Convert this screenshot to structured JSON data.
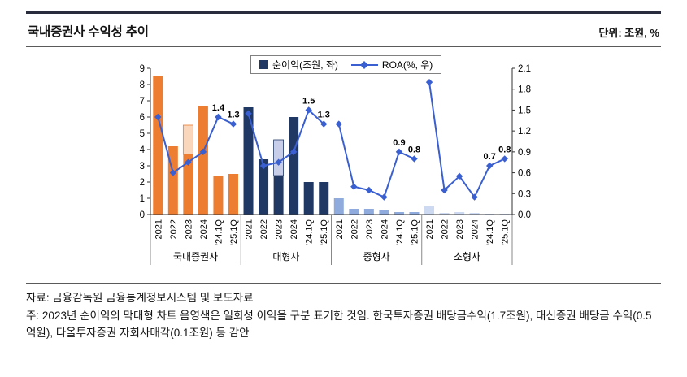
{
  "header": {
    "title": "국내증권사 수익성 추이",
    "unit": "단위: 조원, %"
  },
  "notes": {
    "source": "자료: 금융감독원 금융통계정보시스템 및 보도자료",
    "note": "주: 2023년 순이익의 막대형 차트 음영색은 일회성 이익을 구분 표기한 것임. 한국투자증권 배당금수익(1.7조원), 대신증권 배당금 수익(0.5억원), 다올투자증권 자회사매각(0.1조원) 등 감안"
  },
  "chart_data": {
    "type": "bar+line",
    "title": "국내증권사 수익성 추이",
    "legend": {
      "bar_label": "순이익(조원, 좌)",
      "line_label": "ROA(%, 우)",
      "position": "top-center"
    },
    "categories": [
      "2021",
      "2022",
      "2023",
      "2024",
      "'24.1Q",
      "'25.1Q"
    ],
    "left_axis": {
      "min": 0,
      "max": 9,
      "label_ticks": [
        0,
        1,
        2,
        3,
        4,
        5,
        6,
        7,
        8,
        9
      ],
      "meaning": "순이익(조원)"
    },
    "right_axis": {
      "min": 0,
      "max": 2.1,
      "label_ticks": [
        "0.0",
        "0.3",
        "0.6",
        "0.9",
        "1.2",
        "1.5",
        "1.8",
        "2.1"
      ],
      "meaning": "ROA(%)"
    },
    "grid": "off",
    "line_color": "#3a5fd0",
    "groups": [
      {
        "name": "국내증권사",
        "bar_color": "#ED7D31",
        "one_off_fill": "#FAD7BC",
        "net_income": [
          8.5,
          4.2,
          3.7,
          6.7,
          2.4,
          2.5
        ],
        "one_off": [
          0,
          0,
          1.8,
          0,
          0,
          0
        ],
        "roa": [
          1.4,
          0.6,
          0.75,
          0.9,
          1.4,
          1.3
        ],
        "roa_labels": [
          "",
          "",
          "",
          "",
          "1.4",
          "1.3"
        ]
      },
      {
        "name": "대형사",
        "bar_color": "#203864",
        "one_off_fill": "#C9CEE8",
        "net_income": [
          6.6,
          3.4,
          2.4,
          6.0,
          2.0,
          2.0
        ],
        "one_off": [
          0,
          0,
          2.2,
          0,
          0,
          0
        ],
        "roa": [
          1.45,
          0.7,
          0.75,
          0.9,
          1.5,
          1.3
        ],
        "roa_labels": [
          "",
          "",
          "",
          "",
          "1.5",
          "1.3"
        ]
      },
      {
        "name": "중형사",
        "bar_color": "#8FAADC",
        "one_off_fill": "#DAE3F3",
        "net_income": [
          1.0,
          0.35,
          0.35,
          0.3,
          0.15,
          0.15
        ],
        "one_off": [
          0,
          0,
          0,
          0,
          0,
          0
        ],
        "roa": [
          1.3,
          0.4,
          0.35,
          0.25,
          0.9,
          0.8
        ],
        "roa_labels": [
          "",
          "",
          "",
          "",
          "0.9",
          "0.8"
        ]
      },
      {
        "name": "소형사",
        "bar_color": "#CDD9F0",
        "one_off_fill": "#EDF1FA",
        "net_income": [
          0.55,
          0.1,
          0.15,
          0.1,
          0.05,
          0.05
        ],
        "one_off": [
          0,
          0,
          0,
          0,
          0,
          0
        ],
        "roa": [
          1.9,
          0.35,
          0.55,
          0.25,
          0.7,
          0.8
        ],
        "roa_labels": [
          "",
          "",
          "",
          "",
          "0.7",
          "0.8"
        ]
      }
    ]
  }
}
